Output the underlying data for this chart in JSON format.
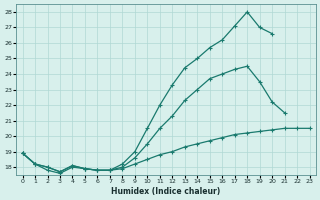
{
  "xlabel": "Humidex (Indice chaleur)",
  "x": [
    0,
    1,
    2,
    3,
    4,
    5,
    6,
    7,
    8,
    9,
    10,
    11,
    12,
    13,
    14,
    15,
    16,
    17,
    18,
    19,
    20,
    21,
    22,
    23
  ],
  "line_top": [
    18.9,
    18.2,
    18.0,
    17.7,
    18.1,
    17.9,
    17.8,
    17.8,
    18.2,
    19.0,
    20.5,
    22.0,
    23.3,
    24.4,
    25.0,
    25.7,
    26.2,
    27.1,
    28.0,
    27.0,
    26.6,
    null,
    null,
    null
  ],
  "line_mid": [
    18.9,
    18.2,
    18.0,
    17.7,
    18.1,
    17.9,
    17.8,
    17.8,
    18.0,
    18.6,
    19.5,
    20.5,
    21.3,
    22.3,
    23.0,
    23.7,
    24.0,
    24.3,
    24.5,
    23.5,
    22.2,
    21.5,
    null,
    null
  ],
  "line_bot": [
    18.9,
    18.2,
    17.8,
    17.6,
    18.0,
    17.9,
    17.8,
    17.8,
    17.9,
    18.2,
    18.5,
    18.8,
    19.0,
    19.3,
    19.5,
    19.7,
    19.9,
    20.1,
    20.2,
    20.3,
    20.4,
    20.5,
    20.5,
    20.5
  ],
  "line_color": "#1a7a6e",
  "bg_color": "#d8f0ec",
  "grid_color": "#b0d8d4",
  "ylim": [
    17.5,
    28.5
  ],
  "xlim": [
    -0.5,
    23.5
  ],
  "yticks": [
    18,
    19,
    20,
    21,
    22,
    23,
    24,
    25,
    26,
    27,
    28
  ],
  "xticks": [
    0,
    1,
    2,
    3,
    4,
    5,
    6,
    7,
    8,
    9,
    10,
    11,
    12,
    13,
    14,
    15,
    16,
    17,
    18,
    19,
    20,
    21,
    22,
    23
  ],
  "marker": "+"
}
